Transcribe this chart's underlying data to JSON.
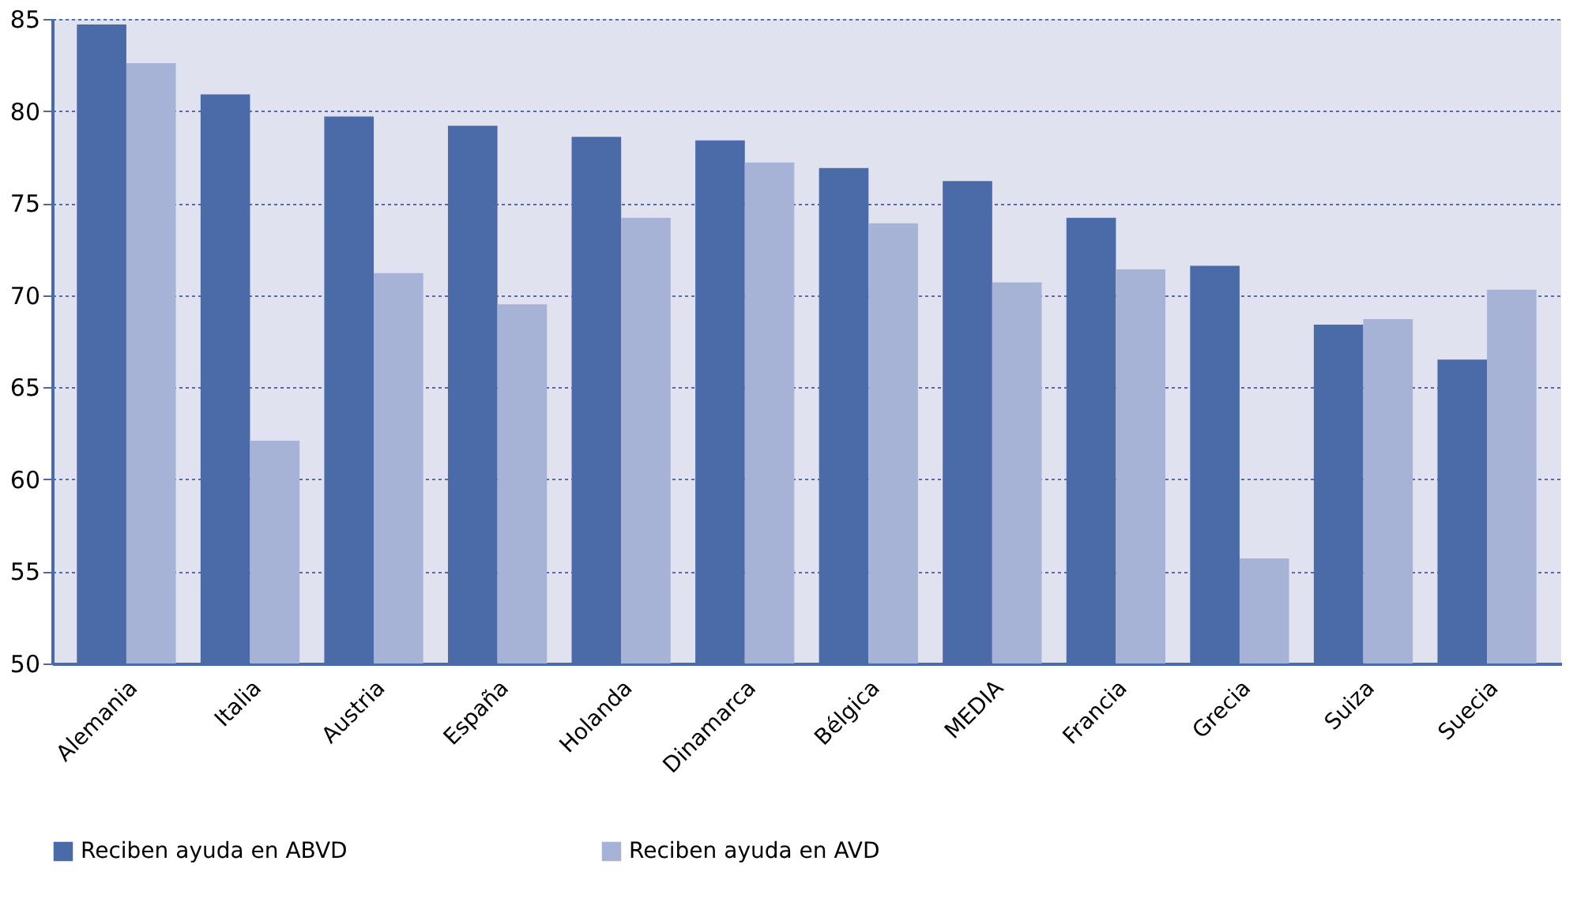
{
  "chart_data": {
    "type": "bar",
    "categories": [
      "Alemania",
      "Italia",
      "Austria",
      "España",
      "Holanda",
      "Dinamarca",
      "Bélgica",
      "MEDIA",
      "Francia",
      "Grecia",
      "Suiza",
      "Suecia"
    ],
    "series": [
      {
        "name": "Reciben ayuda en ABVD",
        "color": "#4a6aa8",
        "values": [
          84.7,
          80.9,
          79.7,
          79.2,
          78.6,
          78.4,
          76.9,
          76.2,
          74.2,
          71.6,
          68.4,
          66.5
        ]
      },
      {
        "name": "Reciben ayuda en AVD",
        "color": "#a7b3d6",
        "values": [
          82.6,
          62.1,
          71.2,
          69.5,
          74.2,
          77.2,
          73.9,
          70.7,
          71.4,
          55.7,
          68.7,
          70.3
        ]
      }
    ],
    "ylim": [
      50,
      85
    ],
    "yticks": [
      50,
      55,
      60,
      65,
      70,
      75,
      80,
      85
    ],
    "grid": "y",
    "legend": "bottom"
  }
}
